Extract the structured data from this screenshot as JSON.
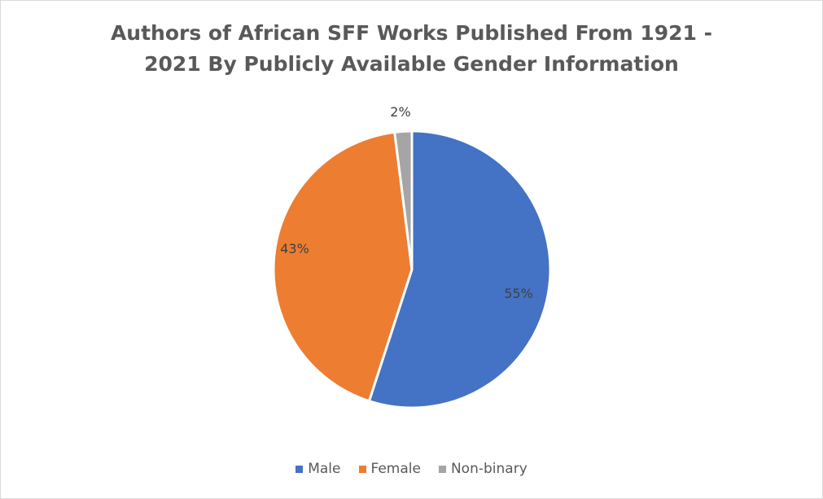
{
  "chart_data": {
    "type": "pie",
    "title_lines": [
      "Authors of African SFF Works Published From  1921 -",
      "2021 By Publicly Available Gender Information"
    ],
    "categories": [
      "Male",
      "Female",
      "Non-binary"
    ],
    "values": [
      55,
      43,
      2
    ],
    "data_labels": [
      "55%",
      "43%",
      "2%"
    ],
    "colors": [
      "#4472c4",
      "#ed7d31",
      "#a5a5a5"
    ],
    "legend_position": "bottom"
  }
}
